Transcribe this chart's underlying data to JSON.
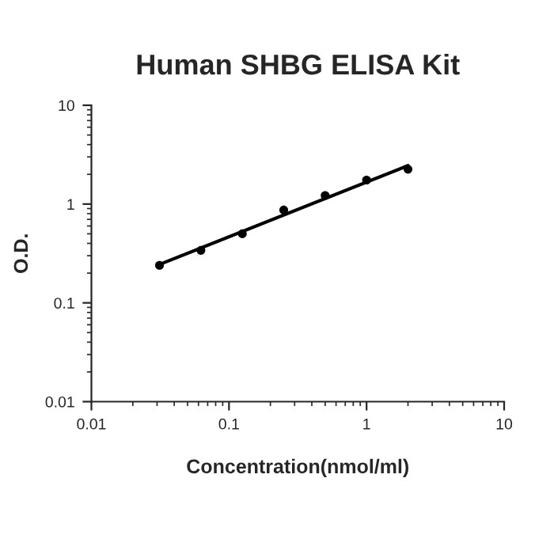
{
  "chart_data": {
    "type": "scatter",
    "title": "Human SHBG ELISA Kit",
    "xlabel": "Concentration(nmol/ml)",
    "ylabel": "O.D.",
    "log": "xy",
    "grid": false,
    "legend": false,
    "xlim": [
      0.01,
      10
    ],
    "xticks": [
      0.01,
      0.1,
      1,
      10
    ],
    "ylim": [
      0.01,
      10
    ],
    "yticks": [
      0.01,
      0.1,
      1,
      10
    ],
    "series": [
      {
        "color": "#000000",
        "marker": "circle",
        "x": [
          0.03125,
          0.0625,
          0.125,
          0.25,
          0.5,
          1,
          2
        ],
        "values": [
          0.24,
          0.34,
          0.5,
          0.87,
          1.22,
          1.75,
          2.25
        ]
      },
      {
        "type": "line",
        "color": "#000000",
        "marker": "none",
        "line_style": "solid",
        "x": [
          0.03125,
          2
        ],
        "values": [
          0.245,
          2.45
        ]
      }
    ]
  }
}
